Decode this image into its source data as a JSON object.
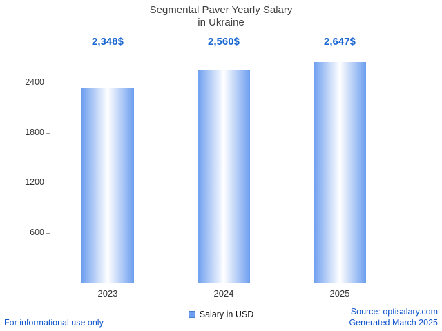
{
  "title": {
    "line1": "Segmental Paver Yearly Salary",
    "line2": "in Ukraine"
  },
  "legend": {
    "label": "Salary in USD"
  },
  "footer": {
    "left": "For informational use only",
    "source": "Source: optisalary.com",
    "generated": "Generated March 2025"
  },
  "colors": {
    "value_label_blue": "#1967d2",
    "footer_blue": "#1155cc",
    "bar_edge_blue": "#6d9eef",
    "bar_center": "#ffffff",
    "legend_swatch_border": "#4a7fd4",
    "axis_gray": "#9a9a9a",
    "title_gray": "#3f3f3f"
  },
  "chart_data": {
    "type": "bar",
    "title": "Segmental Paver Yearly Salary in Ukraine",
    "categories": [
      "2023",
      "2024",
      "2025"
    ],
    "values": [
      2348,
      2560,
      2647
    ],
    "value_labels": [
      "2,348$",
      "2,560$",
      "2,647$"
    ],
    "series": [
      {
        "name": "Salary in USD",
        "values": [
          2348,
          2560,
          2647
        ]
      }
    ],
    "xlabel": "",
    "ylabel": "",
    "ylim": [
      0,
      2800
    ],
    "yticks": [
      600,
      1200,
      1800,
      2400
    ],
    "grid": false,
    "legend_position": "bottom-center"
  }
}
